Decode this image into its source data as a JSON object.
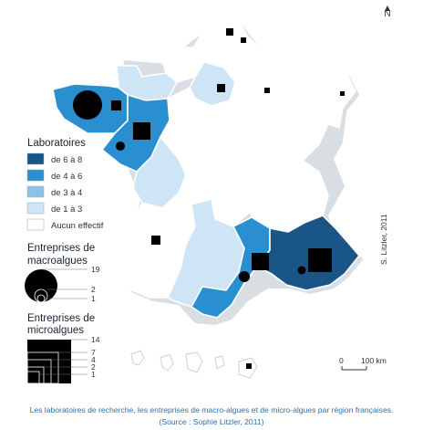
{
  "legend": {
    "labs_title": "Laboratoires",
    "labs_classes": [
      {
        "label": "de 6 à 8",
        "color": "#1a5588"
      },
      {
        "label": "de 4 à 6",
        "color": "#2a8fd0"
      },
      {
        "label": "de 3 à 4",
        "color": "#8cc4e8"
      },
      {
        "label": "de 1 à 3",
        "color": "#cde5f5"
      },
      {
        "label": "Aucun effectif",
        "color": "#ffffff"
      }
    ],
    "macro_title_1": "Entreprises de",
    "macro_title_2": "macroalgues",
    "macro_values": [
      "19",
      "2",
      "1"
    ],
    "micro_title_1": "Entreprises de",
    "micro_title_2": "microalgues",
    "micro_values": [
      "14",
      "7",
      "4",
      "2",
      "1"
    ]
  },
  "north_symbol": "N",
  "scale": {
    "zero": "0",
    "distance": "100 km"
  },
  "credit": "S. Litzler, 2011",
  "caption_line1": "Les laboratoires de recherche, les entreprises de macro-algues et de micro-algues par région françaises.",
  "caption_line2": "(Source : Sophie Litzler, 2011)",
  "colors": {
    "class_6_8": "#1a5588",
    "class_4_6": "#2a8fd0",
    "class_3_4": "#8cc4e8",
    "class_1_3": "#cde5f5",
    "class_none": "#ffffff",
    "symbols": "#000000",
    "caption": "#2f6fa8"
  }
}
